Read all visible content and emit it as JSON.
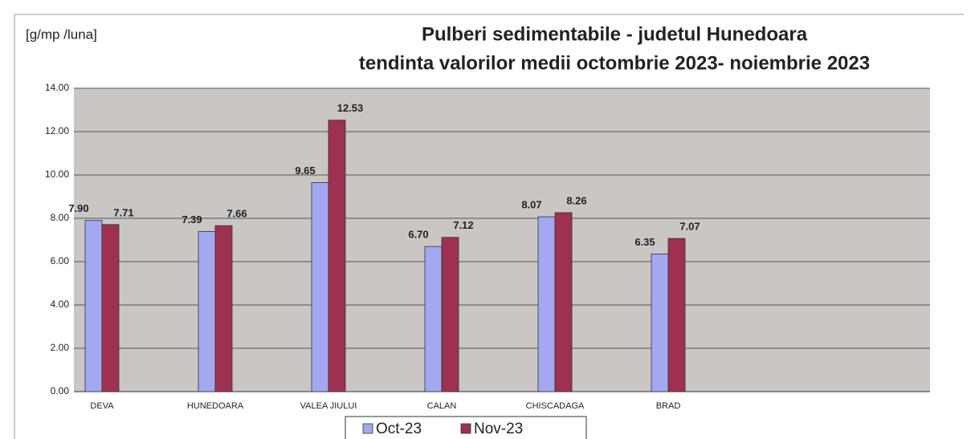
{
  "chart_data": {
    "type": "bar",
    "title": "Pulberi sedimentabile - judetul Hunedoara",
    "subtitle": "tendinta valorilor medii octombrie  2023- noiembrie 2023",
    "y_label": "[g/mp /luna]",
    "categories": [
      "DEVA",
      "HUNEDOARA",
      "VALEA JIULUI",
      "CALAN",
      "CHISCADAGA",
      "BRAD"
    ],
    "series": [
      {
        "name": "Oct-23",
        "color": "#a3a8f0",
        "values": [
          7.9,
          7.39,
          9.65,
          6.7,
          8.07,
          6.35
        ],
        "value_labels": [
          "7.90",
          "7.39",
          "9.65",
          "6.70",
          "8.07",
          "6.35"
        ]
      },
      {
        "name": "Nov-23",
        "color": "#9e3150",
        "values": [
          7.71,
          7.66,
          12.53,
          7.12,
          8.26,
          7.07
        ],
        "value_labels": [
          "7.71",
          "7.66",
          "12.53",
          "7.12",
          "8.26",
          "7.07"
        ]
      }
    ],
    "ylim": [
      0,
      14
    ],
    "yticks": [
      {
        "value": 0,
        "label": "0.00"
      },
      {
        "value": 2,
        "label": "2.00"
      },
      {
        "value": 4,
        "label": "4.00"
      },
      {
        "value": 6,
        "label": "6.00"
      },
      {
        "value": 8,
        "label": "8.00"
      },
      {
        "value": 10,
        "label": "10.00"
      },
      {
        "value": 12,
        "label": "12.00"
      },
      {
        "value": 14,
        "label": "14.00"
      }
    ],
    "grid": true,
    "legend": "bottom"
  }
}
